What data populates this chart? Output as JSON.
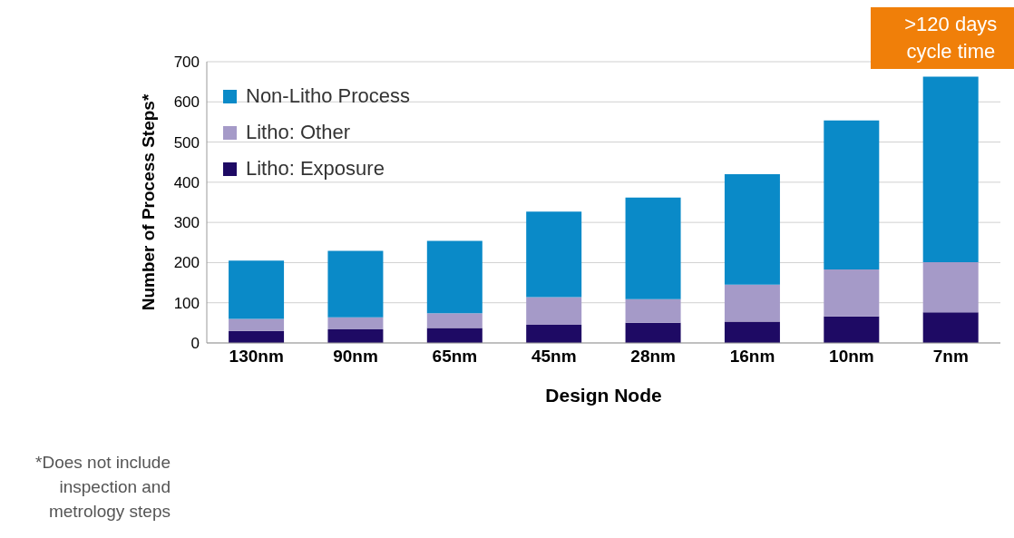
{
  "chart_data": {
    "type": "bar",
    "stacked": true,
    "xlabel": "Design Node",
    "ylabel": "Number  of Process Steps*",
    "categories": [
      "130nm",
      "90nm",
      "65nm",
      "45nm",
      "28nm",
      "16nm",
      "10nm",
      "7nm"
    ],
    "series": [
      {
        "name": "Litho: Exposure",
        "color": "#1e0a64",
        "values": [
          30,
          34,
          37,
          45,
          50,
          53,
          66,
          76
        ]
      },
      {
        "name": "Litho: Other",
        "color": "#a59ac8",
        "values": [
          30,
          30,
          37,
          69,
          59,
          92,
          117,
          125
        ]
      },
      {
        "name": "Non-Litho Process",
        "color": "#0a8ac8",
        "values": [
          145,
          165,
          180,
          213,
          253,
          275,
          371,
          462
        ]
      }
    ],
    "ylim": [
      0,
      700
    ],
    "yticks": [
      0,
      100,
      200,
      300,
      400,
      500,
      600,
      700
    ],
    "grid": "y",
    "legend": "top left",
    "annotations": [
      ">120 days\ncycle time",
      "*Does not include\ninspection and\nmetrology steps"
    ]
  }
}
